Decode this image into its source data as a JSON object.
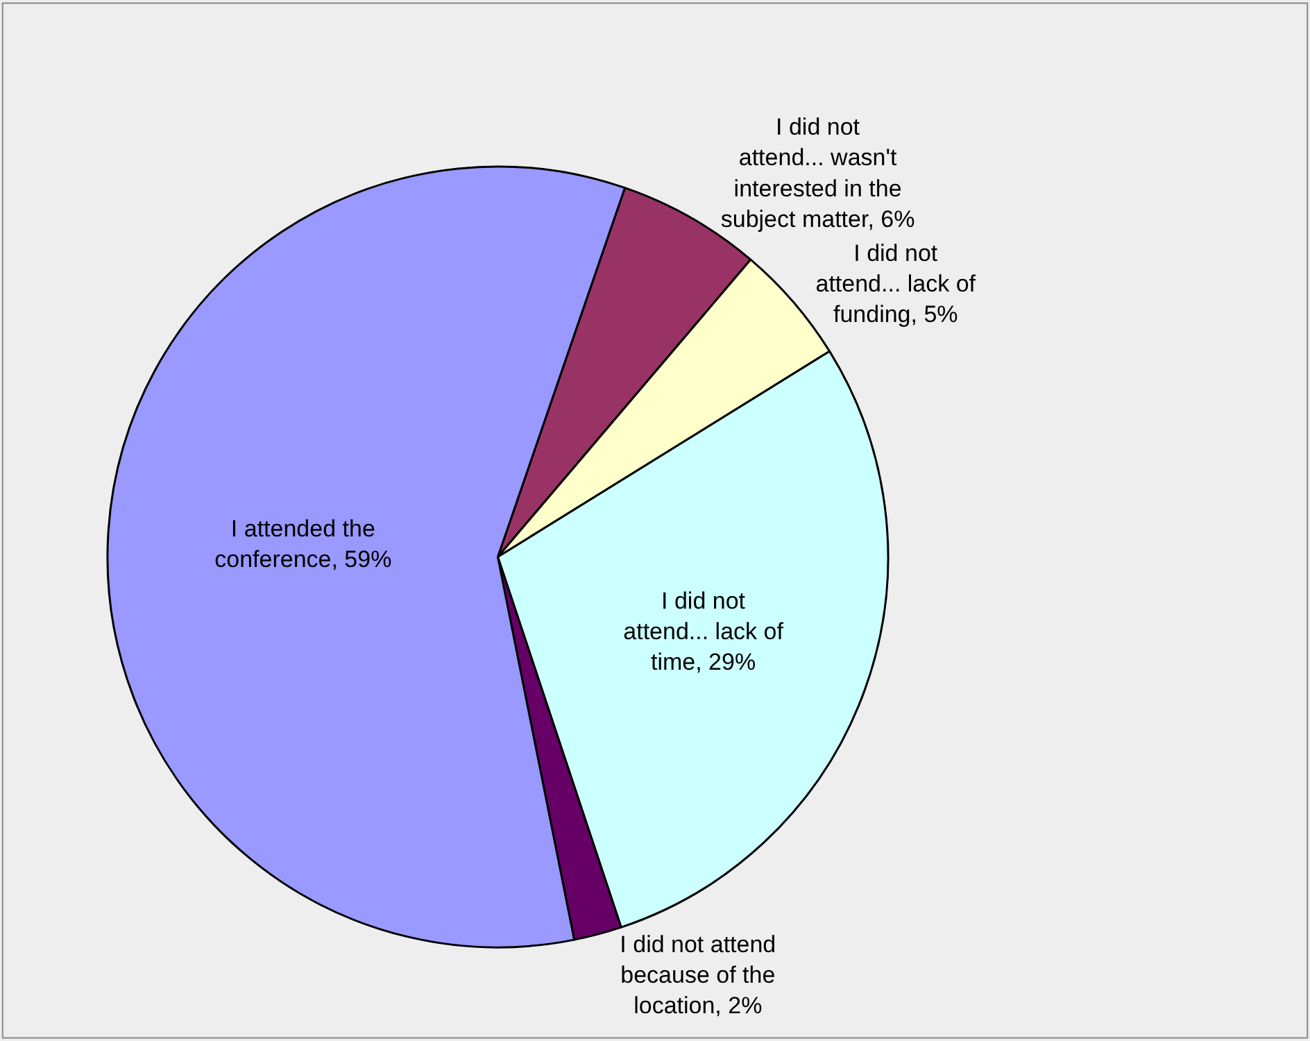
{
  "chart_data": {
    "type": "pie",
    "categories": [
      "I did not attend... wasn't interested in the subject matter",
      "I did not attend... lack of funding",
      "I did not attend... lack of time",
      "I did not attend because of the location",
      "I attended the conference"
    ],
    "values": [
      6,
      5,
      29,
      2,
      59
    ],
    "value_labels": [
      "6%",
      "5%",
      "29%",
      "2%",
      "59%"
    ],
    "colors": [
      "#993366",
      "#ffffcc",
      "#ccffff",
      "#660066",
      "#9999ff"
    ],
    "legend": false
  }
}
